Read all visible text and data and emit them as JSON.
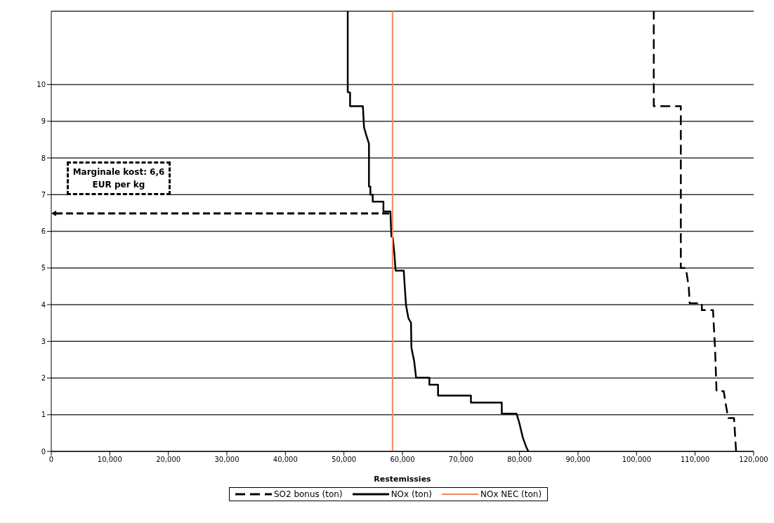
{
  "chart_data": {
    "type": "line",
    "xlabel": "Restemissies",
    "xlim": [
      0,
      120000
    ],
    "xticks": [
      0,
      {
        "value": 10000,
        "label": "10,000"
      },
      {
        "value": 20000,
        "label": "20,000"
      },
      {
        "value": 30000,
        "label": "30,000"
      },
      {
        "value": 40000,
        "label": "40,000"
      },
      {
        "value": 50000,
        "label": "50,000"
      },
      {
        "value": 60000,
        "label": "60,000"
      },
      {
        "value": 70000,
        "label": "70,000"
      },
      {
        "value": 80000,
        "label": "80,000"
      },
      {
        "value": 90000,
        "label": "90,000"
      },
      {
        "value": 100000,
        "label": "100,000"
      },
      {
        "value": 110000,
        "label": "110,000"
      },
      {
        "value": 120000,
        "label": "120,000"
      }
    ],
    "ylim": [
      0,
      12
    ],
    "yticks": [
      0,
      1,
      2,
      3,
      4,
      5,
      6,
      7,
      8,
      9,
      10
    ],
    "grid": "y",
    "legend": "bottom",
    "marker": "none",
    "annotations": [
      "Marginale kost: 6,6 EUR per kg"
    ],
    "series": [
      {
        "name": "SO2 bonus (ton)",
        "color": "#000000",
        "line_style": "dashed",
        "x": [
          117000,
          116650,
          115650,
          115150,
          114900,
          113660,
          113400,
          113160,
          113060,
          111150,
          111150,
          109070,
          108920,
          108430,
          107560,
          107560,
          102940,
          102940
        ],
        "values": [
          0,
          0.91,
          0.91,
          1.37,
          1.64,
          1.64,
          2.84,
          3.54,
          3.85,
          3.85,
          4.04,
          4.04,
          4.47,
          5.0,
          5.0,
          9.41,
          9.41,
          12
        ]
      },
      {
        "name": "NOx (ton)",
        "color": "#000000",
        "line_style": "solid",
        "x": [
          81500,
          81100,
          80560,
          79960,
          79480,
          76970,
          76970,
          71700,
          71700,
          66080,
          66080,
          64600,
          64600,
          62330,
          62010,
          61530,
          61460,
          61020,
          60620,
          60420,
          60220,
          58830,
          58620,
          58350,
          58110,
          57940,
          56750,
          56750,
          54920,
          54920,
          54520,
          54520,
          54280,
          54280,
          53840,
          53440,
          53240,
          51050,
          51050,
          50650,
          50650
        ],
        "values": [
          0,
          0.14,
          0.38,
          0.78,
          1.03,
          1.03,
          1.33,
          1.33,
          1.52,
          1.52,
          1.82,
          1.82,
          2.01,
          2.01,
          2.45,
          2.83,
          3.51,
          3.63,
          3.97,
          4.43,
          4.93,
          4.93,
          5.39,
          5.83,
          5.86,
          6.54,
          6.54,
          6.81,
          6.81,
          7.0,
          7.0,
          7.22,
          7.22,
          8.39,
          8.61,
          8.83,
          9.41,
          9.41,
          9.78,
          9.8,
          12
        ]
      },
      {
        "name": "NOx NEC (ton)",
        "color": "#f4845f",
        "line_style": "solid",
        "x": [
          58300,
          58300
        ],
        "values": [
          0,
          12
        ]
      }
    ]
  }
}
